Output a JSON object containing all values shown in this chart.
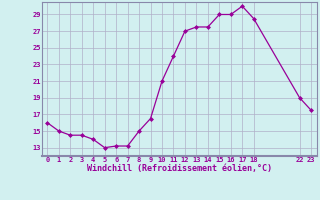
{
  "x": [
    0,
    1,
    2,
    3,
    4,
    5,
    6,
    7,
    8,
    9,
    10,
    11,
    12,
    13,
    14,
    15,
    16,
    17,
    18,
    22,
    23
  ],
  "y": [
    16,
    15,
    14.5,
    14.5,
    14,
    13,
    13.2,
    13.2,
    15,
    16.5,
    21,
    24,
    27,
    27.5,
    27.5,
    29,
    29,
    30,
    28.5,
    19,
    17.5
  ],
  "line_color": "#990099",
  "marker_color": "#990099",
  "bg_color": "#d2f0f0",
  "grid_color": "#b0b0c8",
  "title": "Windchill (Refroidissement éolien,°C)",
  "ylim": [
    12,
    30.5
  ],
  "yticks": [
    13,
    15,
    17,
    19,
    21,
    23,
    25,
    27,
    29
  ],
  "xticks": [
    0,
    1,
    2,
    3,
    4,
    5,
    6,
    7,
    8,
    9,
    10,
    11,
    12,
    13,
    14,
    15,
    16,
    17,
    18,
    22,
    23
  ],
  "xlim": [
    -0.5,
    23.5
  ],
  "tick_color": "#990099",
  "label_color": "#990099",
  "spine_color": "#8888aa"
}
